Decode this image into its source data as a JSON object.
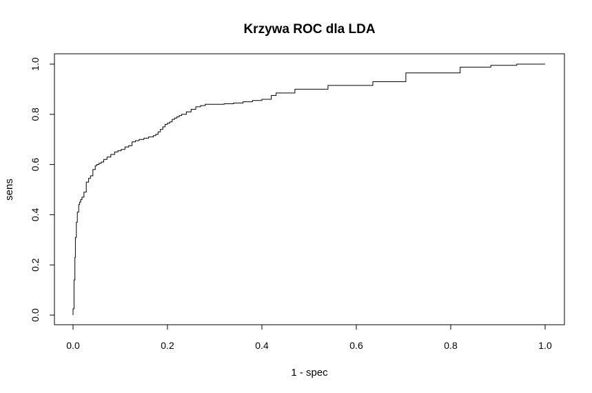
{
  "chart_data": {
    "type": "line",
    "title": "Krzywa ROC dla LDA",
    "xlabel": "1 - spec",
    "ylabel": "sens",
    "xlim": [
      0.0,
      1.0
    ],
    "ylim": [
      0.0,
      1.0
    ],
    "grid": false,
    "line_color": "#000000",
    "x_ticks": [
      "0.0",
      "0.2",
      "0.4",
      "0.6",
      "0.8",
      "1.0"
    ],
    "y_ticks": [
      "0.0",
      "0.2",
      "0.4",
      "0.6",
      "0.8",
      "1.0"
    ],
    "series": [
      {
        "x": [
          0.0,
          0.0,
          0.002,
          0.002,
          0.004,
          0.004,
          0.005,
          0.005,
          0.007,
          0.007,
          0.009,
          0.009,
          0.012,
          0.012,
          0.014,
          0.014,
          0.016,
          0.016,
          0.019,
          0.019,
          0.023,
          0.023,
          0.028,
          0.028,
          0.033,
          0.033,
          0.037,
          0.037,
          0.042,
          0.042,
          0.047,
          0.047,
          0.05,
          0.05,
          0.055,
          0.055,
          0.06,
          0.06,
          0.065,
          0.065,
          0.072,
          0.072,
          0.08,
          0.08,
          0.088,
          0.088,
          0.095,
          0.095,
          0.102,
          0.102,
          0.11,
          0.11,
          0.118,
          0.118,
          0.125,
          0.125,
          0.132,
          0.132,
          0.14,
          0.14,
          0.15,
          0.15,
          0.16,
          0.16,
          0.17,
          0.17,
          0.175,
          0.175,
          0.18,
          0.18,
          0.185,
          0.185,
          0.19,
          0.19,
          0.195,
          0.195,
          0.2,
          0.2,
          0.205,
          0.205,
          0.21,
          0.21,
          0.215,
          0.215,
          0.22,
          0.22,
          0.225,
          0.225,
          0.23,
          0.23,
          0.24,
          0.24,
          0.25,
          0.25,
          0.26,
          0.26,
          0.27,
          0.27,
          0.28,
          0.28,
          0.32,
          0.32,
          0.34,
          0.34,
          0.36,
          0.36,
          0.38,
          0.38,
          0.4,
          0.4,
          0.42,
          0.42,
          0.43,
          0.43,
          0.47,
          0.47,
          0.54,
          0.54,
          0.635,
          0.635,
          0.705,
          0.705,
          0.82,
          0.82,
          0.885,
          0.885,
          0.94,
          0.94,
          1.0
        ],
        "y": [
          0.0,
          0.025,
          0.025,
          0.14,
          0.14,
          0.23,
          0.23,
          0.31,
          0.31,
          0.37,
          0.37,
          0.41,
          0.41,
          0.44,
          0.44,
          0.45,
          0.45,
          0.46,
          0.46,
          0.47,
          0.47,
          0.49,
          0.49,
          0.53,
          0.53,
          0.545,
          0.545,
          0.555,
          0.555,
          0.58,
          0.58,
          0.595,
          0.595,
          0.6,
          0.6,
          0.605,
          0.605,
          0.61,
          0.61,
          0.62,
          0.62,
          0.63,
          0.63,
          0.64,
          0.64,
          0.65,
          0.65,
          0.655,
          0.655,
          0.66,
          0.66,
          0.67,
          0.67,
          0.675,
          0.675,
          0.69,
          0.69,
          0.695,
          0.695,
          0.7,
          0.7,
          0.705,
          0.705,
          0.71,
          0.71,
          0.715,
          0.715,
          0.72,
          0.72,
          0.73,
          0.73,
          0.74,
          0.74,
          0.75,
          0.75,
          0.76,
          0.76,
          0.765,
          0.765,
          0.77,
          0.77,
          0.78,
          0.78,
          0.785,
          0.785,
          0.79,
          0.79,
          0.795,
          0.795,
          0.8,
          0.8,
          0.81,
          0.81,
          0.82,
          0.82,
          0.83,
          0.83,
          0.835,
          0.835,
          0.84,
          0.84,
          0.842,
          0.842,
          0.845,
          0.845,
          0.85,
          0.85,
          0.855,
          0.855,
          0.86,
          0.86,
          0.875,
          0.875,
          0.885,
          0.885,
          0.9,
          0.9,
          0.915,
          0.915,
          0.93,
          0.93,
          0.965,
          0.965,
          0.988,
          0.988,
          0.995,
          0.995,
          1.0,
          1.0
        ]
      }
    ]
  }
}
